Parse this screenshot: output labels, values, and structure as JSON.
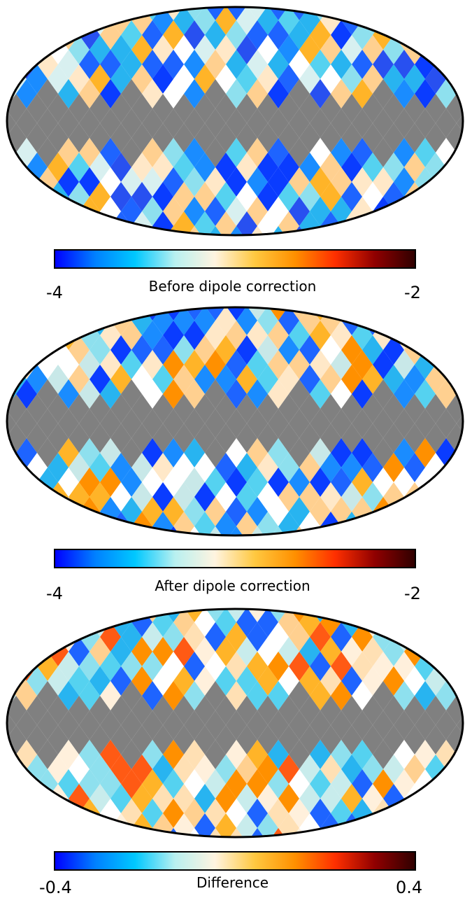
{
  "colormap": [
    "#0000ff",
    "#0080ff",
    "#00c8ff",
    "#b8f0f0",
    "#fff4e0",
    "#ffc840",
    "#ff9000",
    "#ff3000",
    "#900000",
    "#300000"
  ],
  "mask_color": "#808080",
  "panels": [
    {
      "name": "before",
      "caption": "Before dipole correction",
      "min_label": "-4",
      "max_label": "-2"
    },
    {
      "name": "after",
      "caption": "After dipole correction",
      "min_label": "-4",
      "max_label": "-2"
    },
    {
      "name": "difference",
      "caption": "Difference",
      "min_label": "-0.4",
      "max_label": "0.4"
    }
  ]
}
